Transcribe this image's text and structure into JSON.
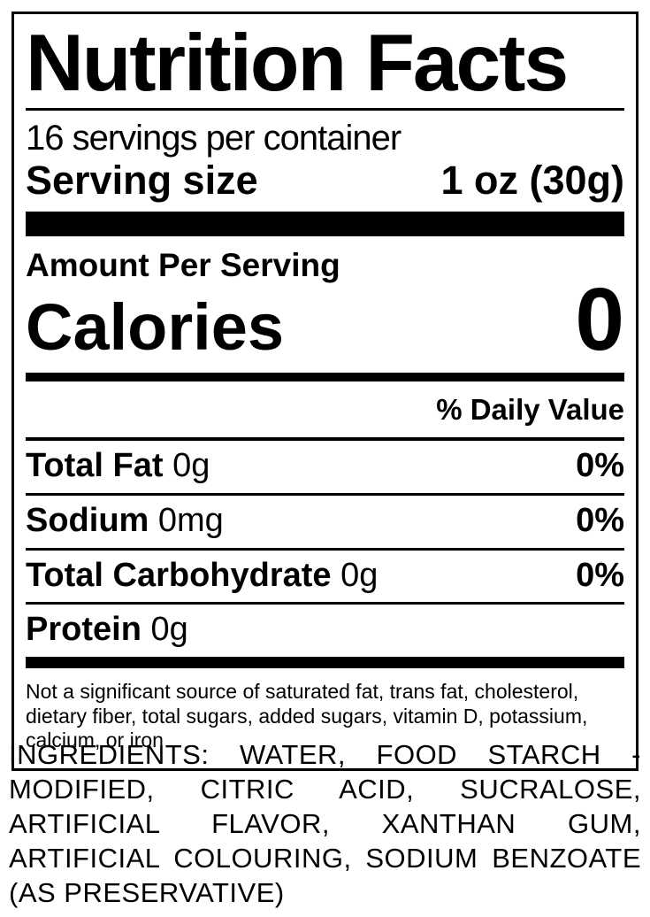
{
  "colors": {
    "text": "#000000",
    "background": "#ffffff"
  },
  "label": {
    "title": "Nutrition Facts",
    "servings_per_container": "16 servings per container",
    "serving_size_label": "Serving size",
    "serving_size_value": "1 oz (30g)",
    "amount_per_serving": "Amount Per Serving",
    "calories_label": "Calories",
    "calories_value": "0",
    "daily_value_header": "% Daily Value",
    "nutrients": [
      {
        "name": "Total Fat",
        "amount": "0g",
        "dv": "0%"
      },
      {
        "name": "Sodium",
        "amount": "0mg",
        "dv": "0%"
      },
      {
        "name": "Total Carbohydrate",
        "amount": "0g",
        "dv": "0%"
      },
      {
        "name": "Protein",
        "amount": "0g",
        "dv": ""
      }
    ],
    "footnote": "Not a significant source of saturated fat, trans fat, cholesterol, dietary fiber, total sugars, added sugars, vitamin D, potassium, calcium, or iron"
  },
  "ingredients_text": "INGREDIENTS: WATER, FOOD STARCH - MODIFIED, CITRIC ACID, SUCRALOSE, ARTIFICIAL FLAVOR, XANTHAN GUM, ARTIFICIAL COLOURING, SODIUM BENZOATE (AS PRESERVATIVE)"
}
